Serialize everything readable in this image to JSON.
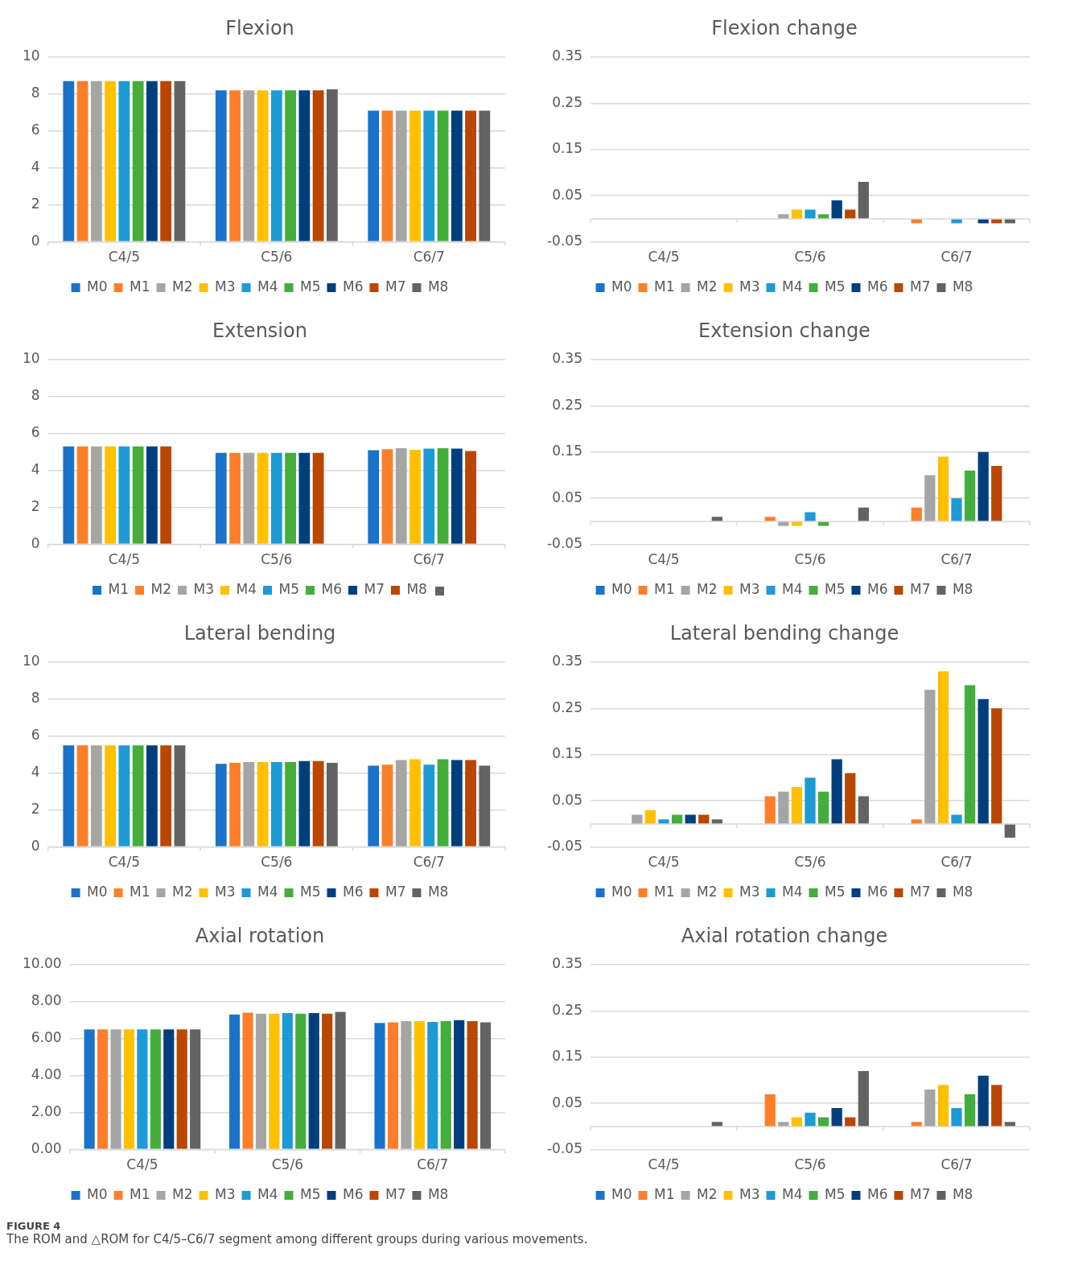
{
  "chart_data": [
    {
      "type": "bar",
      "title": "Flexion",
      "categories": [
        "C4/5",
        "C5/6",
        "C6/7"
      ],
      "ylim": [
        0,
        10
      ],
      "yticks": [
        0,
        2,
        4,
        6,
        8,
        10
      ],
      "grid": "y",
      "legend": "bottom",
      "series": [
        {
          "name": "M0",
          "color": "#1a73c8",
          "values": [
            8.7,
            8.2,
            7.1
          ]
        },
        {
          "name": "M1",
          "color": "#fd7f2a",
          "values": [
            8.7,
            8.2,
            7.1
          ]
        },
        {
          "name": "M2",
          "color": "#a5a5a5",
          "values": [
            8.7,
            8.2,
            7.1
          ]
        },
        {
          "name": "M3",
          "color": "#ffc000",
          "values": [
            8.7,
            8.2,
            7.1
          ]
        },
        {
          "name": "M4",
          "color": "#1e9ad6",
          "values": [
            8.7,
            8.2,
            7.1
          ]
        },
        {
          "name": "M5",
          "color": "#44ad3c",
          "values": [
            8.7,
            8.2,
            7.1
          ]
        },
        {
          "name": "M6",
          "color": "#003f7d",
          "values": [
            8.7,
            8.2,
            7.1
          ]
        },
        {
          "name": "M7",
          "color": "#b94700",
          "values": [
            8.7,
            8.2,
            7.1
          ]
        },
        {
          "name": "M8",
          "color": "#636363",
          "values": [
            8.7,
            8.25,
            7.1
          ]
        }
      ]
    },
    {
      "type": "bar",
      "title": "Flexion change",
      "categories": [
        "C4/5",
        "C5/6",
        "C6/7"
      ],
      "ylim": [
        -0.05,
        0.35
      ],
      "yticks": [
        -0.05,
        0.05,
        0.15,
        0.25,
        0.35
      ],
      "grid": "y",
      "legend": "bottom",
      "series": [
        {
          "name": "M0",
          "color": "#1a73c8",
          "values": [
            0,
            0,
            0
          ]
        },
        {
          "name": "M1",
          "color": "#fd7f2a",
          "values": [
            0,
            0,
            -0.01
          ]
        },
        {
          "name": "M2",
          "color": "#a5a5a5",
          "values": [
            0,
            0.01,
            0
          ]
        },
        {
          "name": "M3",
          "color": "#ffc000",
          "values": [
            0,
            0.02,
            0
          ]
        },
        {
          "name": "M4",
          "color": "#1e9ad6",
          "values": [
            0,
            0.02,
            -0.01
          ]
        },
        {
          "name": "M5",
          "color": "#44ad3c",
          "values": [
            0,
            0.01,
            0
          ]
        },
        {
          "name": "M6",
          "color": "#003f7d",
          "values": [
            0,
            0.04,
            -0.01
          ]
        },
        {
          "name": "M7",
          "color": "#b94700",
          "values": [
            0,
            0.02,
            -0.01
          ]
        },
        {
          "name": "M8",
          "color": "#636363",
          "values": [
            0,
            0.08,
            -0.01
          ]
        }
      ]
    },
    {
      "type": "bar",
      "title": "Extension",
      "categories": [
        "C4/5",
        "C5/6",
        "C6/7"
      ],
      "ylim": [
        0,
        10
      ],
      "yticks": [
        0,
        2,
        4,
        6,
        8,
        10
      ],
      "grid": "y",
      "legend": "bottom",
      "series": [
        {
          "name": "M1",
          "color": "#1a73c8",
          "values": [
            5.3,
            4.95,
            5.1
          ]
        },
        {
          "name": "M2",
          "color": "#fd7f2a",
          "values": [
            5.3,
            4.95,
            5.15
          ]
        },
        {
          "name": "M3",
          "color": "#a5a5a5",
          "values": [
            5.3,
            4.95,
            5.2
          ]
        },
        {
          "name": "M4",
          "color": "#ffc000",
          "values": [
            5.3,
            4.95,
            5.12
          ]
        },
        {
          "name": "M5",
          "color": "#1e9ad6",
          "values": [
            5.3,
            4.95,
            5.18
          ]
        },
        {
          "name": "M6",
          "color": "#44ad3c",
          "values": [
            5.3,
            4.95,
            5.2
          ]
        },
        {
          "name": "M7",
          "color": "#003f7d",
          "values": [
            5.3,
            4.95,
            5.18
          ]
        },
        {
          "name": "M8",
          "color": "#b94700",
          "values": [
            5.3,
            4.95,
            5.05
          ]
        },
        {
          "color": "#636363",
          "values": [
            null,
            null,
            null
          ]
        }
      ]
    },
    {
      "type": "bar",
      "title": "Extension change",
      "categories": [
        "C4/5",
        "C5/6",
        "C6/7"
      ],
      "ylim": [
        -0.05,
        0.35
      ],
      "yticks": [
        -0.05,
        0.05,
        0.15,
        0.25,
        0.35
      ],
      "grid": "y",
      "legend": "bottom",
      "series": [
        {
          "name": "M0",
          "color": "#1a73c8",
          "values": [
            0,
            0,
            0
          ]
        },
        {
          "name": "M1",
          "color": "#fd7f2a",
          "values": [
            0,
            0.01,
            0.03
          ]
        },
        {
          "name": "M2",
          "color": "#a5a5a5",
          "values": [
            0,
            -0.01,
            0.1
          ]
        },
        {
          "name": "M3",
          "color": "#ffc000",
          "values": [
            0,
            -0.01,
            0.14
          ]
        },
        {
          "name": "M4",
          "color": "#1e9ad6",
          "values": [
            0,
            0.02,
            0.05
          ]
        },
        {
          "name": "M5",
          "color": "#44ad3c",
          "values": [
            0,
            -0.01,
            0.11
          ]
        },
        {
          "name": "M6",
          "color": "#003f7d",
          "values": [
            0,
            0,
            0.15
          ]
        },
        {
          "name": "M7",
          "color": "#b94700",
          "values": [
            0,
            0,
            0.12
          ]
        },
        {
          "name": "M8",
          "color": "#636363",
          "values": [
            0.01,
            0.03,
            0
          ]
        }
      ]
    },
    {
      "type": "bar",
      "title": "Lateral bending",
      "categories": [
        "C4/5",
        "C5/6",
        "C6/7"
      ],
      "ylim": [
        0,
        10
      ],
      "yticks": [
        0,
        2,
        4,
        6,
        8,
        10
      ],
      "grid": "y",
      "legend": "bottom",
      "series": [
        {
          "name": "M0",
          "color": "#1a73c8",
          "values": [
            5.5,
            4.5,
            4.4
          ]
        },
        {
          "name": "M1",
          "color": "#fd7f2a",
          "values": [
            5.5,
            4.55,
            4.45
          ]
        },
        {
          "name": "M2",
          "color": "#a5a5a5",
          "values": [
            5.5,
            4.6,
            4.7
          ]
        },
        {
          "name": "M3",
          "color": "#ffc000",
          "values": [
            5.5,
            4.6,
            4.75
          ]
        },
        {
          "name": "M4",
          "color": "#1e9ad6",
          "values": [
            5.5,
            4.6,
            4.45
          ]
        },
        {
          "name": "M5",
          "color": "#44ad3c",
          "values": [
            5.5,
            4.6,
            4.75
          ]
        },
        {
          "name": "M6",
          "color": "#003f7d",
          "values": [
            5.5,
            4.65,
            4.7
          ]
        },
        {
          "name": "M7",
          "color": "#b94700",
          "values": [
            5.5,
            4.65,
            4.7
          ]
        },
        {
          "name": "M8",
          "color": "#636363",
          "values": [
            5.5,
            4.55,
            4.4
          ]
        }
      ]
    },
    {
      "type": "bar",
      "title": "Lateral bending change",
      "categories": [
        "C4/5",
        "C5/6",
        "C6/7"
      ],
      "ylim": [
        -0.05,
        0.35
      ],
      "yticks": [
        -0.05,
        0.05,
        0.15,
        0.25,
        0.35
      ],
      "grid": "y",
      "legend": "bottom",
      "series": [
        {
          "name": "M0",
          "color": "#1a73c8",
          "values": [
            0,
            0,
            0
          ]
        },
        {
          "name": "M1",
          "color": "#fd7f2a",
          "values": [
            0,
            0.06,
            0.01
          ]
        },
        {
          "name": "M2",
          "color": "#a5a5a5",
          "values": [
            0.02,
            0.07,
            0.29
          ]
        },
        {
          "name": "M3",
          "color": "#ffc000",
          "values": [
            0.03,
            0.08,
            0.33
          ]
        },
        {
          "name": "M4",
          "color": "#1e9ad6",
          "values": [
            0.01,
            0.1,
            0.02
          ]
        },
        {
          "name": "M5",
          "color": "#44ad3c",
          "values": [
            0.02,
            0.07,
            0.3
          ]
        },
        {
          "name": "M6",
          "color": "#003f7d",
          "values": [
            0.02,
            0.14,
            0.27
          ]
        },
        {
          "name": "M7",
          "color": "#b94700",
          "values": [
            0.02,
            0.11,
            0.25
          ]
        },
        {
          "name": "M8",
          "color": "#636363",
          "values": [
            0.01,
            0.06,
            -0.03
          ]
        }
      ]
    },
    {
      "type": "bar",
      "title": "Axial rotation",
      "categories": [
        "C4/5",
        "C5/6",
        "C6/7"
      ],
      "ylim": [
        0,
        10
      ],
      "yticks": [
        {
          "value": 0,
          "label": "0.00"
        },
        {
          "value": 2,
          "label": "2.00"
        },
        {
          "value": 4,
          "label": "4.00"
        },
        {
          "value": 6,
          "label": "6.00"
        },
        {
          "value": 8,
          "label": "8.00"
        },
        {
          "value": 10,
          "label": "10.00"
        }
      ],
      "grid": "y",
      "legend": "bottom",
      "series": [
        {
          "name": "M0",
          "color": "#1a73c8",
          "values": [
            6.5,
            7.3,
            6.85
          ]
        },
        {
          "name": "M1",
          "color": "#fd7f2a",
          "values": [
            6.5,
            7.4,
            6.88
          ]
        },
        {
          "name": "M2",
          "color": "#a5a5a5",
          "values": [
            6.5,
            7.35,
            6.95
          ]
        },
        {
          "name": "M3",
          "color": "#ffc000",
          "values": [
            6.5,
            7.35,
            6.95
          ]
        },
        {
          "name": "M4",
          "color": "#1e9ad6",
          "values": [
            6.5,
            7.38,
            6.9
          ]
        },
        {
          "name": "M5",
          "color": "#44ad3c",
          "values": [
            6.5,
            7.35,
            6.95
          ]
        },
        {
          "name": "M6",
          "color": "#003f7d",
          "values": [
            6.5,
            7.38,
            7.0
          ]
        },
        {
          "name": "M7",
          "color": "#b94700",
          "values": [
            6.5,
            7.35,
            6.95
          ]
        },
        {
          "name": "M8",
          "color": "#636363",
          "values": [
            6.5,
            7.45,
            6.88
          ]
        }
      ]
    },
    {
      "type": "bar",
      "title": "Axial rotation change",
      "categories": [
        "C4/5",
        "C5/6",
        "C6/7"
      ],
      "ylim": [
        -0.05,
        0.35
      ],
      "yticks": [
        -0.05,
        0.05,
        0.15,
        0.25,
        0.35
      ],
      "grid": "y",
      "legend": "bottom",
      "annotations": [
        "FIGURE 4",
        "The ROM and △ROM for C4/5–C6/7 segment among different groups during various movements."
      ],
      "series": [
        {
          "name": "M0",
          "color": "#1a73c8",
          "values": [
            0,
            0,
            0
          ]
        },
        {
          "name": "M1",
          "color": "#fd7f2a",
          "values": [
            0,
            0.07,
            0.01
          ]
        },
        {
          "name": "M2",
          "color": "#a5a5a5",
          "values": [
            0,
            0.01,
            0.08
          ]
        },
        {
          "name": "M3",
          "color": "#ffc000",
          "values": [
            0,
            0.02,
            0.09
          ]
        },
        {
          "name": "M4",
          "color": "#1e9ad6",
          "values": [
            0,
            0.03,
            0.04
          ]
        },
        {
          "name": "M5",
          "color": "#44ad3c",
          "values": [
            0,
            0.02,
            0.07
          ]
        },
        {
          "name": "M6",
          "color": "#003f7d",
          "values": [
            0,
            0.04,
            0.11
          ]
        },
        {
          "name": "M7",
          "color": "#b94700",
          "values": [
            0,
            0.02,
            0.09
          ]
        },
        {
          "name": "M8",
          "color": "#636363",
          "values": [
            0.01,
            0.12,
            0.01
          ]
        }
      ]
    }
  ]
}
